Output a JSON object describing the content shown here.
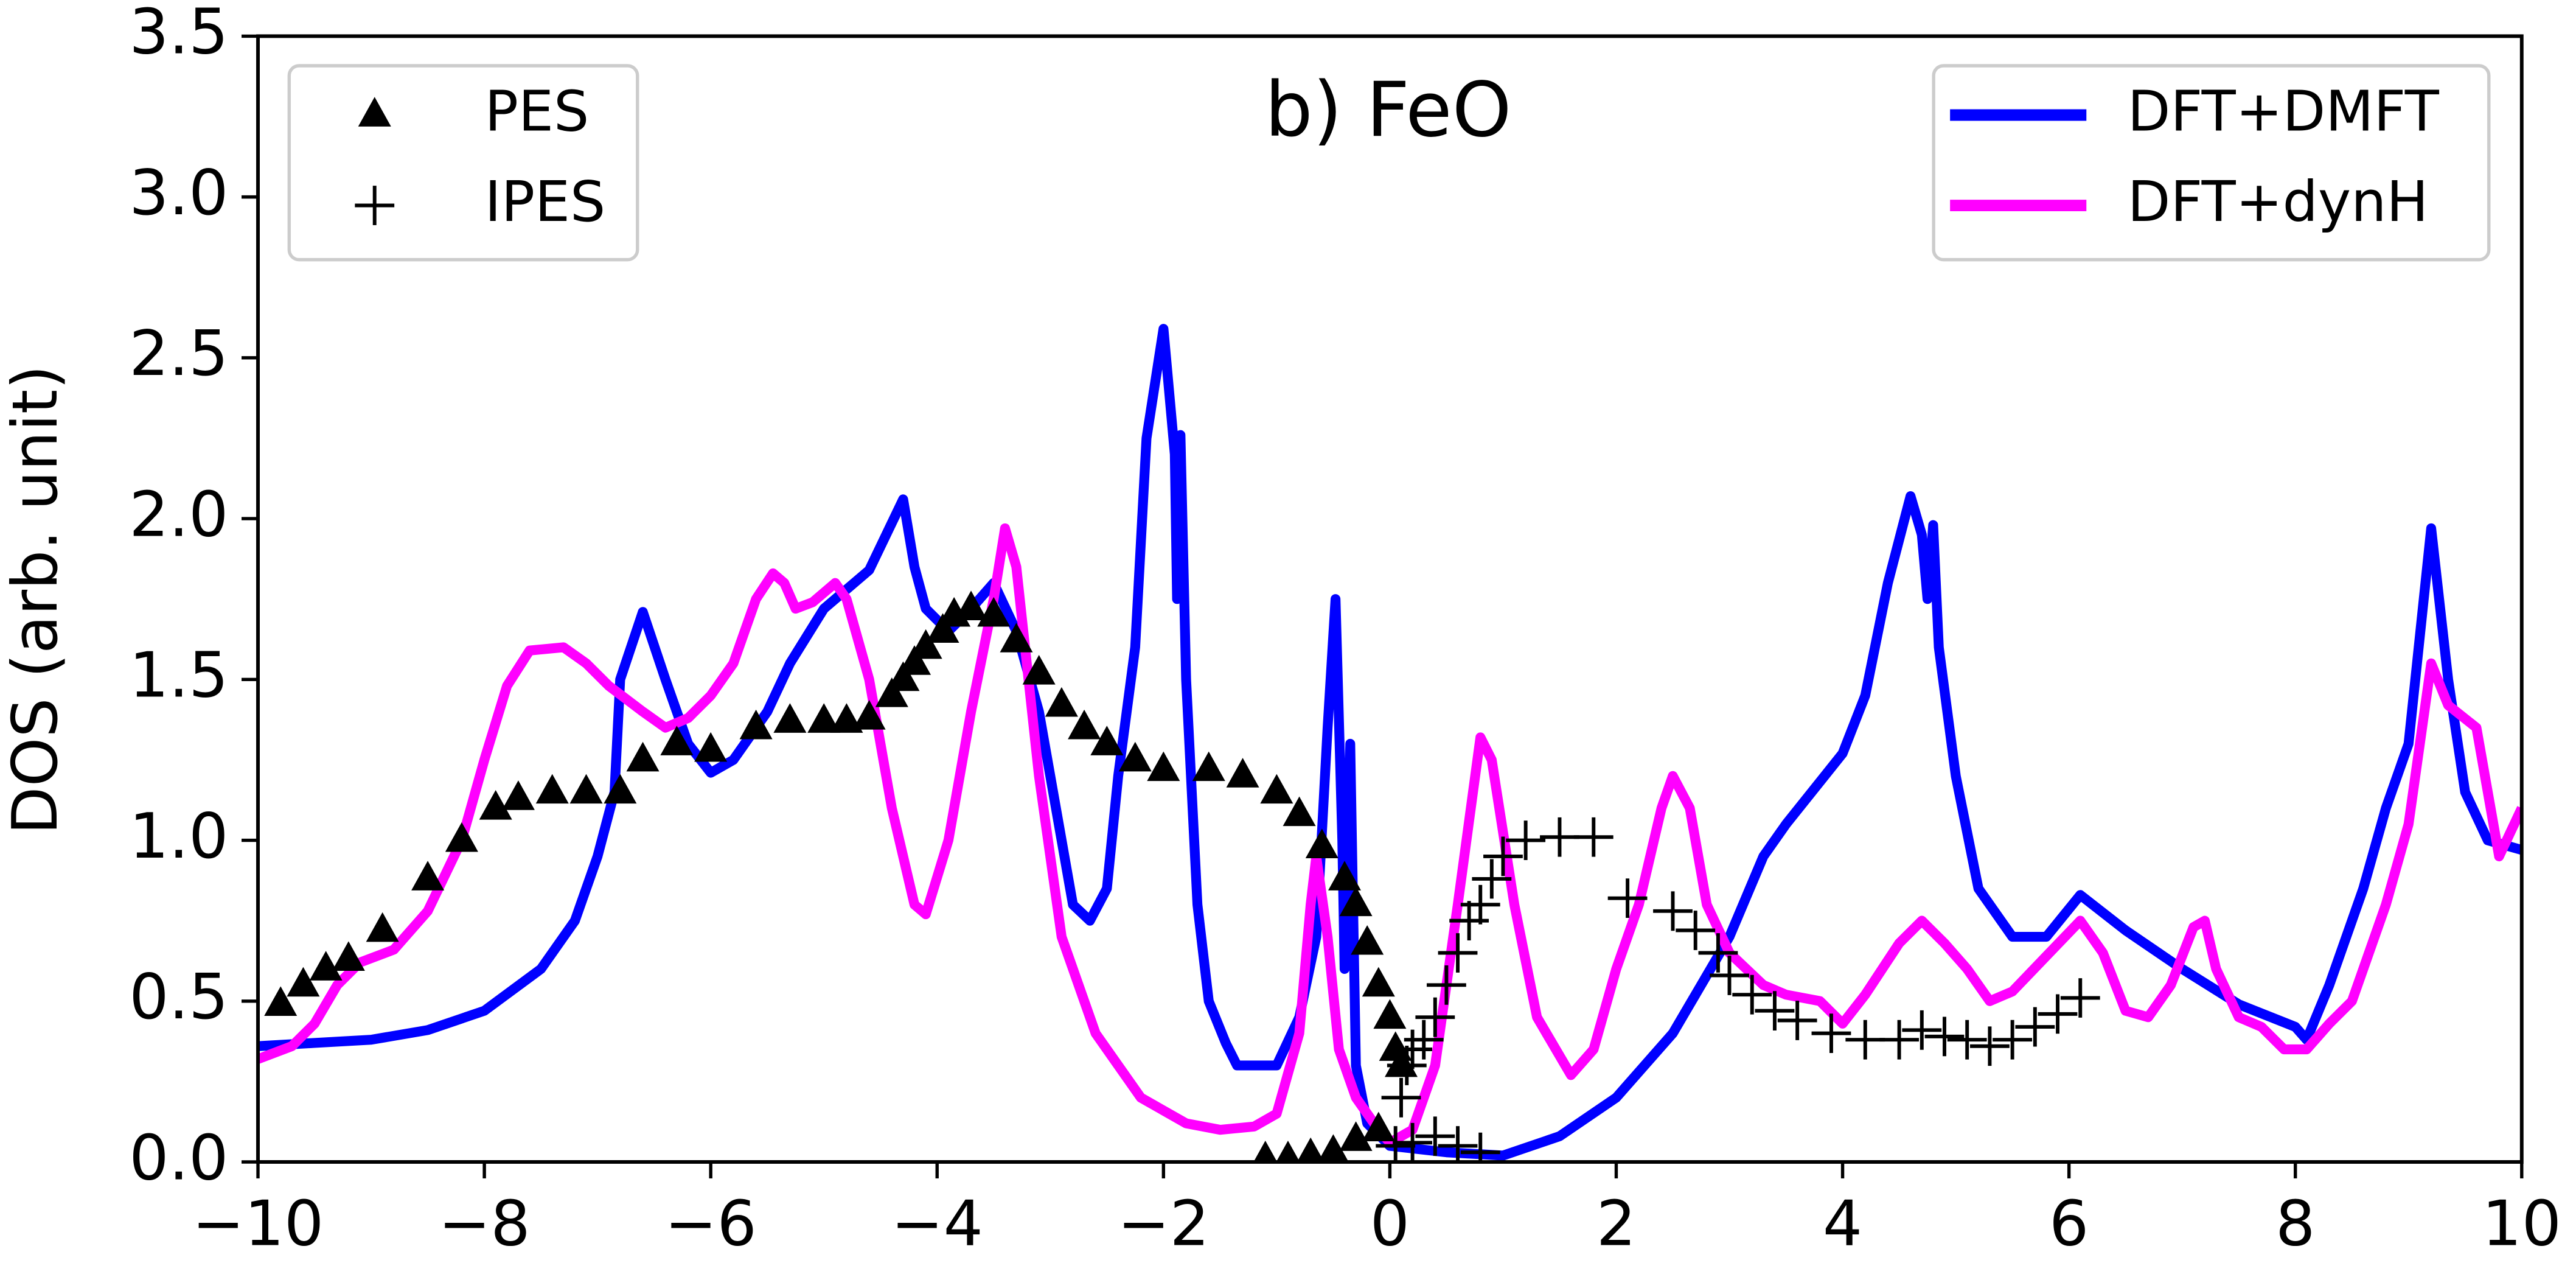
{
  "chart_data": {
    "type": "line",
    "title": "b) FeO",
    "y_label": "DOS (arb. unit)",
    "xlim": [
      -10,
      10
    ],
    "ylim": [
      0,
      3.5
    ],
    "xticks": [
      {
        "value": -10,
        "label": "−10"
      },
      {
        "value": -8,
        "label": "−8"
      },
      {
        "value": -6,
        "label": "−6"
      },
      {
        "value": -4,
        "label": "−4"
      },
      {
        "value": -2,
        "label": "−2"
      },
      0,
      2,
      4,
      6,
      8,
      10
    ],
    "yticks": [
      {
        "value": 0,
        "label": "0.0"
      },
      0.5,
      {
        "value": 1,
        "label": "1.0"
      },
      1.5,
      {
        "value": 2,
        "label": "2.0"
      },
      2.5,
      {
        "value": 3,
        "label": "3.0"
      },
      3.5
    ],
    "grid": false,
    "line_legend_loc": "upper right",
    "marker_legend_loc": "upper left",
    "series": [
      {
        "name": "DFT+DMFT",
        "color": "#0000ff",
        "marker": "line",
        "x": [
          -10,
          -9.5,
          -9,
          -8.5,
          -8,
          -7.5,
          -7.2,
          -7,
          -6.85,
          -6.8,
          -6.6,
          -6.4,
          -6.2,
          -6,
          -5.8,
          -5.5,
          -5.3,
          -5,
          -4.6,
          -4.3,
          -4.2,
          -4.1,
          -3.9,
          -3.7,
          -3.5,
          -3.3,
          -3.1,
          -2.9,
          -2.8,
          -2.65,
          -2.5,
          -2.4,
          -2.25,
          -2.15,
          -2,
          -1.9,
          -1.88,
          -1.85,
          -1.8,
          -1.7,
          -1.6,
          -1.45,
          -1.35,
          -1,
          -0.8,
          -0.65,
          -0.55,
          -0.48,
          -0.42,
          -0.4,
          -0.35,
          -0.3,
          -0.2,
          0,
          0.5,
          1,
          1.5,
          2,
          2.5,
          3,
          3.3,
          3.5,
          4,
          4.2,
          4.4,
          4.6,
          4.7,
          4.75,
          4.8,
          4.85,
          5,
          5.2,
          5.5,
          5.8,
          6.1,
          6.5,
          7,
          7.5,
          8,
          8.1,
          8.3,
          8.6,
          8.8,
          9,
          9.2,
          9.35,
          9.5,
          9.7,
          10
        ],
        "values": [
          0.36,
          0.37,
          0.38,
          0.41,
          0.47,
          0.6,
          0.75,
          0.95,
          1.15,
          1.5,
          1.71,
          1.5,
          1.3,
          1.21,
          1.25,
          1.4,
          1.55,
          1.72,
          1.84,
          2.06,
          1.85,
          1.72,
          1.65,
          1.72,
          1.8,
          1.65,
          1.4,
          1.0,
          0.8,
          0.75,
          0.85,
          1.2,
          1.6,
          2.25,
          2.59,
          2.2,
          1.75,
          2.26,
          1.5,
          0.8,
          0.5,
          0.37,
          0.3,
          0.3,
          0.45,
          0.7,
          1.35,
          1.75,
          1.0,
          0.6,
          1.3,
          0.3,
          0.12,
          0.05,
          0.03,
          0.02,
          0.08,
          0.2,
          0.4,
          0.7,
          0.95,
          1.05,
          1.27,
          1.45,
          1.8,
          2.07,
          1.95,
          1.75,
          1.98,
          1.6,
          1.2,
          0.85,
          0.7,
          0.7,
          0.83,
          0.72,
          0.6,
          0.49,
          0.42,
          0.38,
          0.55,
          0.85,
          1.1,
          1.3,
          1.97,
          1.5,
          1.15,
          1.0,
          0.97
        ]
      },
      {
        "name": "DFT+dynH",
        "color": "#ff00ff",
        "marker": "line",
        "x": [
          -10,
          -9.7,
          -9.5,
          -9.3,
          -9.1,
          -8.8,
          -8.5,
          -8.2,
          -8,
          -7.8,
          -7.6,
          -7.3,
          -7.1,
          -6.9,
          -6.6,
          -6.4,
          -6.2,
          -6,
          -5.8,
          -5.6,
          -5.45,
          -5.35,
          -5.25,
          -5.1,
          -4.9,
          -4.8,
          -4.6,
          -4.4,
          -4.2,
          -4.1,
          -3.9,
          -3.7,
          -3.5,
          -3.4,
          -3.3,
          -3.1,
          -2.9,
          -2.6,
          -2.2,
          -1.8,
          -1.5,
          -1.2,
          -1,
          -0.8,
          -0.7,
          -0.65,
          -0.55,
          -0.45,
          -0.3,
          -0.1,
          0,
          0.2,
          0.4,
          0.6,
          0.8,
          0.9,
          1.1,
          1.3,
          1.6,
          1.8,
          2,
          2.2,
          2.4,
          2.5,
          2.65,
          2.8,
          3,
          3.3,
          3.5,
          3.8,
          4,
          4.2,
          4.5,
          4.7,
          4.9,
          5.1,
          5.3,
          5.5,
          5.8,
          6.1,
          6.3,
          6.5,
          6.7,
          6.9,
          7.1,
          7.2,
          7.3,
          7.5,
          7.7,
          7.9,
          8.1,
          8.3,
          8.5,
          8.8,
          9,
          9.2,
          9.35,
          9.6,
          9.8,
          10
        ],
        "values": [
          0.32,
          0.36,
          0.43,
          0.55,
          0.62,
          0.66,
          0.78,
          1.0,
          1.25,
          1.48,
          1.59,
          1.6,
          1.55,
          1.48,
          1.4,
          1.35,
          1.38,
          1.45,
          1.55,
          1.75,
          1.83,
          1.8,
          1.72,
          1.74,
          1.8,
          1.75,
          1.5,
          1.1,
          0.8,
          0.77,
          1.0,
          1.4,
          1.75,
          1.97,
          1.85,
          1.2,
          0.7,
          0.4,
          0.2,
          0.12,
          0.1,
          0.11,
          0.15,
          0.4,
          0.8,
          0.95,
          0.7,
          0.35,
          0.2,
          0.1,
          0.06,
          0.1,
          0.3,
          0.8,
          1.32,
          1.25,
          0.8,
          0.45,
          0.27,
          0.35,
          0.6,
          0.8,
          1.1,
          1.2,
          1.1,
          0.8,
          0.65,
          0.55,
          0.52,
          0.5,
          0.43,
          0.52,
          0.68,
          0.75,
          0.68,
          0.6,
          0.5,
          0.53,
          0.64,
          0.75,
          0.65,
          0.47,
          0.45,
          0.55,
          0.73,
          0.75,
          0.6,
          0.45,
          0.42,
          0.35,
          0.35,
          0.43,
          0.5,
          0.8,
          1.05,
          1.55,
          1.42,
          1.35,
          0.95,
          1.1
        ]
      },
      {
        "name": "PES",
        "color": "#000000",
        "marker": "triangle",
        "x": [
          -9.8,
          -9.6,
          -9.4,
          -9.2,
          -8.9,
          -8.5,
          -8.2,
          -7.9,
          -7.7,
          -7.4,
          -7.1,
          -6.8,
          -6.6,
          -6.3,
          -6,
          -5.6,
          -5.3,
          -5,
          -4.8,
          -4.6,
          -4.4,
          -4.3,
          -4.2,
          -4.1,
          -3.95,
          -3.85,
          -3.7,
          -3.5,
          -3.3,
          -3.1,
          -2.9,
          -2.7,
          -2.5,
          -2.25,
          -2,
          -1.6,
          -1.3,
          -1,
          -0.8,
          -0.6,
          -0.4,
          -0.3,
          -0.2,
          -0.1,
          0,
          0.05,
          0.1,
          -1.1,
          -0.9,
          -0.7,
          -0.5,
          -0.3,
          -0.1
        ],
        "values": [
          0.49,
          0.55,
          0.6,
          0.63,
          0.72,
          0.88,
          1.0,
          1.1,
          1.13,
          1.15,
          1.15,
          1.15,
          1.25,
          1.3,
          1.28,
          1.35,
          1.37,
          1.37,
          1.37,
          1.38,
          1.45,
          1.5,
          1.55,
          1.6,
          1.65,
          1.7,
          1.72,
          1.7,
          1.62,
          1.52,
          1.42,
          1.35,
          1.3,
          1.25,
          1.22,
          1.22,
          1.2,
          1.15,
          1.08,
          0.98,
          0.88,
          0.8,
          0.68,
          0.55,
          0.45,
          0.35,
          0.3,
          0.01,
          0.01,
          0.02,
          0.03,
          0.07,
          0.1
        ]
      },
      {
        "name": "IPES",
        "color": "#000000",
        "marker": "plus",
        "x": [
          0.05,
          0.2,
          0.4,
          0.6,
          0.8,
          0.1,
          0.15,
          0.2,
          0.3,
          0.4,
          0.5,
          0.6,
          0.7,
          0.8,
          0.9,
          1,
          1.2,
          1.5,
          1.8,
          2.1,
          2.5,
          2.7,
          2.9,
          3,
          3.2,
          3.4,
          3.6,
          3.9,
          4.2,
          4.5,
          4.7,
          4.9,
          5.1,
          5.3,
          5.5,
          5.7,
          5.9,
          6.1
        ],
        "values": [
          0.05,
          0.06,
          0.08,
          0.05,
          0.03,
          0.2,
          0.3,
          0.35,
          0.38,
          0.45,
          0.55,
          0.65,
          0.75,
          0.8,
          0.88,
          0.95,
          1.0,
          1.01,
          1.01,
          0.82,
          0.78,
          0.72,
          0.65,
          0.58,
          0.52,
          0.47,
          0.44,
          0.4,
          0.38,
          0.38,
          0.41,
          0.39,
          0.38,
          0.36,
          0.38,
          0.42,
          0.46,
          0.51
        ]
      }
    ]
  }
}
